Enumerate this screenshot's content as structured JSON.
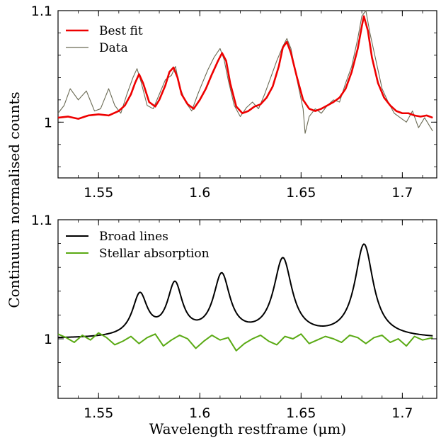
{
  "chart_data": [
    {
      "type": "line",
      "panel": "top",
      "xlim": [
        1.53,
        1.717
      ],
      "ylim": [
        0.95,
        1.1
      ],
      "x_ticks": [
        1.55,
        1.6,
        1.65,
        1.7
      ],
      "x_tick_labels": [
        "1.55",
        "1.6",
        "1.65",
        "1.7"
      ],
      "y_ticks": [
        1.0,
        1.1
      ],
      "y_tick_labels": [
        "1",
        "1.1"
      ],
      "legend": "top-left",
      "grid": false,
      "series": [
        {
          "name": "Best fit",
          "color": "#ee0000",
          "x": [
            1.53,
            1.535,
            1.54,
            1.545,
            1.55,
            1.555,
            1.56,
            1.563,
            1.566,
            1.568,
            1.57,
            1.572,
            1.575,
            1.578,
            1.58,
            1.583,
            1.585,
            1.587,
            1.589,
            1.591,
            1.594,
            1.597,
            1.6,
            1.603,
            1.606,
            1.609,
            1.611,
            1.613,
            1.615,
            1.618,
            1.621,
            1.624,
            1.627,
            1.63,
            1.633,
            1.636,
            1.639,
            1.641,
            1.643,
            1.645,
            1.648,
            1.651,
            1.654,
            1.657,
            1.66,
            1.663,
            1.666,
            1.669,
            1.672,
            1.675,
            1.678,
            1.68,
            1.681,
            1.683,
            1.685,
            1.688,
            1.691,
            1.694,
            1.697,
            1.7,
            1.703,
            1.706,
            1.709,
            1.712,
            1.715
          ],
          "y": [
            1.004,
            1.005,
            1.003,
            1.006,
            1.007,
            1.006,
            1.01,
            1.015,
            1.025,
            1.035,
            1.043,
            1.035,
            1.018,
            1.014,
            1.02,
            1.033,
            1.045,
            1.049,
            1.04,
            1.025,
            1.016,
            1.012,
            1.02,
            1.03,
            1.043,
            1.055,
            1.062,
            1.055,
            1.035,
            1.014,
            1.008,
            1.01,
            1.014,
            1.016,
            1.022,
            1.032,
            1.05,
            1.067,
            1.072,
            1.062,
            1.04,
            1.02,
            1.012,
            1.01,
            1.012,
            1.015,
            1.018,
            1.022,
            1.03,
            1.045,
            1.066,
            1.086,
            1.095,
            1.082,
            1.058,
            1.035,
            1.022,
            1.015,
            1.01,
            1.008,
            1.008,
            1.006,
            1.005,
            1.006,
            1.004
          ]
        },
        {
          "name": "Data",
          "color": "#6b6b55",
          "x": [
            1.53,
            1.533,
            1.536,
            1.54,
            1.544,
            1.548,
            1.551,
            1.555,
            1.558,
            1.561,
            1.564,
            1.567,
            1.569,
            1.571,
            1.574,
            1.577,
            1.58,
            1.583,
            1.586,
            1.588,
            1.59,
            1.593,
            1.596,
            1.599,
            1.601,
            1.604,
            1.607,
            1.61,
            1.612,
            1.614,
            1.617,
            1.62,
            1.623,
            1.626,
            1.629,
            1.632,
            1.635,
            1.638,
            1.641,
            1.643,
            1.645,
            1.648,
            1.651,
            1.652,
            1.654,
            1.657,
            1.66,
            1.663,
            1.666,
            1.669,
            1.672,
            1.675,
            1.678,
            1.68,
            1.682,
            1.684,
            1.687,
            1.69,
            1.693,
            1.696,
            1.699,
            1.702,
            1.705,
            1.708,
            1.711,
            1.715
          ],
          "y": [
            1.008,
            1.015,
            1.03,
            1.02,
            1.028,
            1.01,
            1.012,
            1.03,
            1.015,
            1.008,
            1.025,
            1.04,
            1.048,
            1.036,
            1.015,
            1.012,
            1.025,
            1.038,
            1.042,
            1.05,
            1.032,
            1.018,
            1.01,
            1.025,
            1.034,
            1.047,
            1.058,
            1.066,
            1.056,
            1.038,
            1.015,
            1.005,
            1.013,
            1.018,
            1.012,
            1.025,
            1.04,
            1.055,
            1.068,
            1.075,
            1.066,
            1.038,
            1.012,
            0.99,
            1.005,
            1.012,
            1.008,
            1.015,
            1.02,
            1.018,
            1.035,
            1.05,
            1.075,
            1.095,
            1.1,
            1.08,
            1.055,
            1.03,
            1.018,
            1.008,
            1.004,
            1.0,
            1.01,
            0.995,
            1.004,
            0.992
          ]
        }
      ]
    },
    {
      "type": "line",
      "panel": "bottom",
      "xlabel": "Wavelength restframe (μm)",
      "xlim": [
        1.53,
        1.717
      ],
      "ylim": [
        0.95,
        1.1
      ],
      "x_ticks": [
        1.55,
        1.6,
        1.65,
        1.7
      ],
      "x_tick_labels": [
        "1.55",
        "1.6",
        "1.65",
        "1.7"
      ],
      "y_ticks": [
        1.0,
        1.1
      ],
      "y_tick_labels": [
        "1",
        "1.1"
      ],
      "legend": "top-left",
      "grid": false,
      "lines": {
        "continuum": 1.0,
        "peaks": [
          {
            "center": 1.5704,
            "amp": 0.035,
            "width": 0.0045
          },
          {
            "center": 1.5877,
            "amp": 0.043,
            "width": 0.0045
          },
          {
            "center": 1.6108,
            "amp": 0.051,
            "width": 0.005
          },
          {
            "center": 1.641,
            "amp": 0.065,
            "width": 0.0055
          },
          {
            "center": 1.6811,
            "amp": 0.078,
            "width": 0.0055
          }
        ]
      },
      "series": [
        {
          "name": "Broad lines",
          "color": "#000000"
        },
        {
          "name": "Stellar absorption",
          "color": "#5aaa14",
          "x": [
            1.53,
            1.534,
            1.538,
            1.542,
            1.546,
            1.55,
            1.554,
            1.558,
            1.562,
            1.566,
            1.57,
            1.574,
            1.578,
            1.582,
            1.586,
            1.59,
            1.594,
            1.598,
            1.602,
            1.606,
            1.61,
            1.614,
            1.618,
            1.622,
            1.626,
            1.63,
            1.634,
            1.638,
            1.642,
            1.646,
            1.65,
            1.654,
            1.658,
            1.662,
            1.666,
            1.67,
            1.674,
            1.678,
            1.682,
            1.686,
            1.69,
            1.694,
            1.698,
            1.702,
            1.706,
            1.71,
            1.715
          ],
          "y": [
            1.004,
            1.001,
            0.997,
            1.003,
            0.999,
            1.005,
            1.001,
            0.995,
            0.998,
            1.002,
            0.996,
            1.001,
            1.004,
            0.994,
            0.999,
            1.003,
            1.0,
            0.992,
            0.998,
            1.003,
            0.999,
            1.001,
            0.99,
            0.996,
            1.0,
            1.003,
            0.998,
            0.995,
            1.002,
            1.0,
            1.004,
            0.996,
            0.999,
            1.002,
            1.0,
            0.997,
            1.003,
            1.001,
            0.996,
            1.001,
            1.003,
            0.997,
            1.0,
            0.994,
            1.002,
            0.999,
            1.001
          ]
        }
      ]
    }
  ],
  "shared": {
    "ylabel": "Continuum normalised counts"
  }
}
